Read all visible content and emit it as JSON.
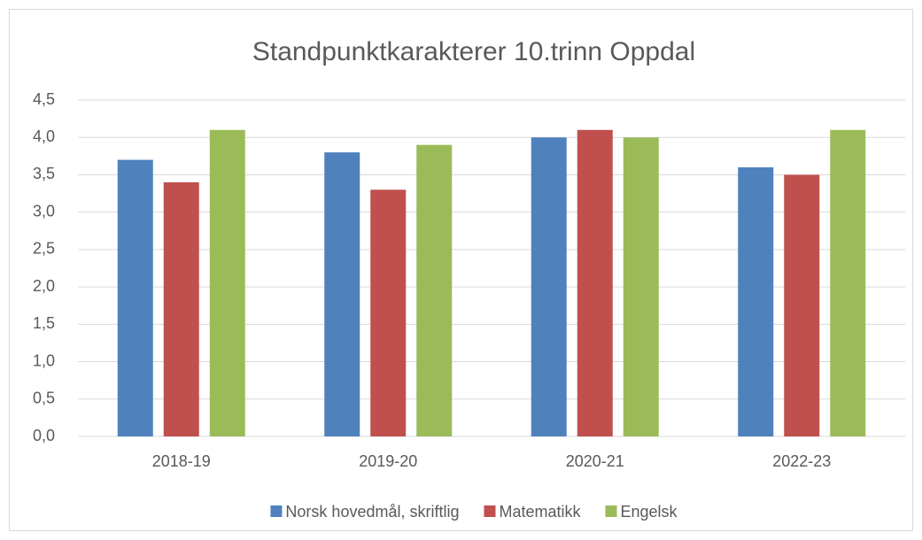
{
  "chart_data": {
    "type": "bar",
    "title": "Standpunktkarakterer 10.trinn Oppdal",
    "categories": [
      "2018-19",
      "2019-20",
      "2020-21",
      "2022-23"
    ],
    "series": [
      {
        "name": "Norsk hovedmål, skriftlig",
        "color": "#4f81bd",
        "values": [
          3.7,
          3.8,
          4.0,
          3.6
        ]
      },
      {
        "name": "Matematikk",
        "color": "#c0504d",
        "values": [
          3.4,
          3.3,
          4.1,
          3.5
        ]
      },
      {
        "name": "Engelsk",
        "color": "#9bbb59",
        "values": [
          4.1,
          3.9,
          4.0,
          4.1
        ]
      }
    ],
    "ylim": [
      0,
      4.5
    ],
    "yticks": [
      {
        "value": 0,
        "label": "0,0"
      },
      {
        "value": 0.5,
        "label": "0,5"
      },
      {
        "value": 1,
        "label": "1,0"
      },
      {
        "value": 1.5,
        "label": "1,5"
      },
      {
        "value": 2,
        "label": "2,0"
      },
      {
        "value": 2.5,
        "label": "2,5"
      },
      {
        "value": 3,
        "label": "3,0"
      },
      {
        "value": 3.5,
        "label": "3,5"
      },
      {
        "value": 4,
        "label": "4,0"
      },
      {
        "value": 4.5,
        "label": "4,5"
      }
    ],
    "grid": true,
    "legend": "bottom"
  }
}
